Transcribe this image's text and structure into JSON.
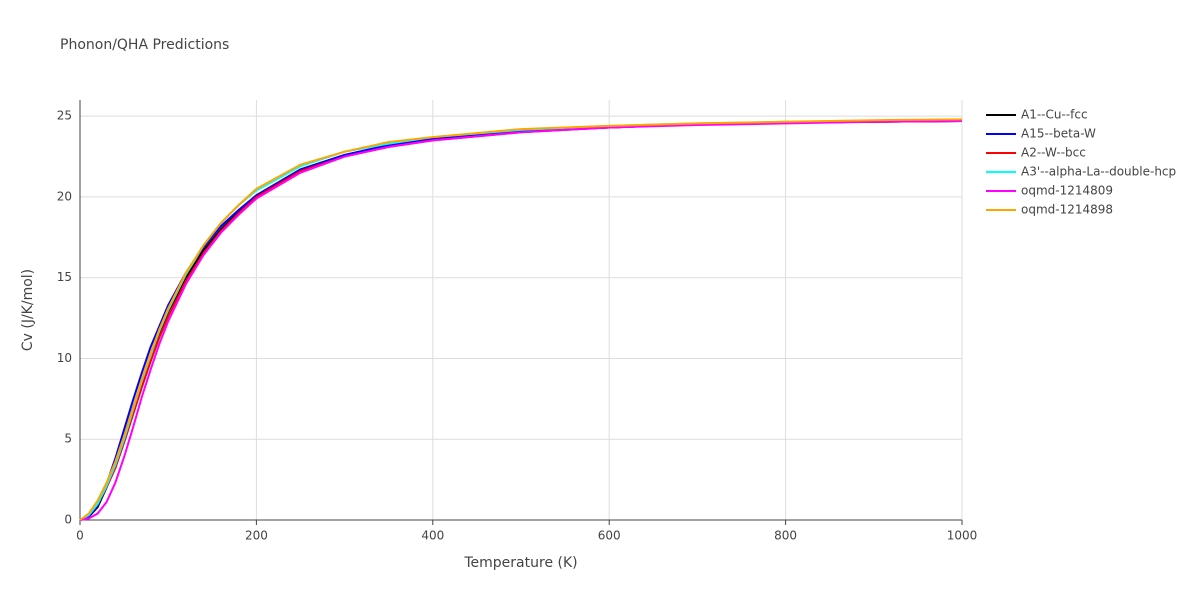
{
  "chart_data": {
    "type": "line",
    "title": "Phonon/QHA Predictions",
    "x_label": "Temperature (K)",
    "y_label": "Cv (J/K/mol)",
    "x": [
      0,
      10,
      20,
      30,
      40,
      50,
      60,
      70,
      80,
      90,
      100,
      120,
      140,
      160,
      180,
      200,
      250,
      300,
      350,
      400,
      500,
      600,
      700,
      800,
      900,
      1000
    ],
    "series": [
      {
        "name": "A1--Cu--fcc",
        "color": "#000000",
        "values": [
          0,
          0.2,
          0.8,
          2.0,
          3.5,
          5.2,
          6.9,
          8.6,
          10.2,
          11.6,
          12.9,
          15.0,
          16.7,
          18.0,
          19.1,
          20.1,
          21.7,
          22.6,
          23.2,
          23.6,
          24.1,
          24.3,
          24.5,
          24.6,
          24.65,
          24.7
        ]
      },
      {
        "name": "A15--beta-W",
        "color": "#0000ff",
        "values": [
          0,
          0.2,
          0.9,
          2.2,
          3.8,
          5.6,
          7.4,
          9.1,
          10.7,
          12.0,
          13.3,
          15.3,
          16.9,
          18.2,
          19.2,
          20.1,
          21.7,
          22.6,
          23.2,
          23.6,
          24.1,
          24.3,
          24.5,
          24.6,
          24.65,
          24.7
        ]
      },
      {
        "name": "A2--W--bcc",
        "color": "#ff0000",
        "values": [
          0,
          0.3,
          1.0,
          2.0,
          3.2,
          4.8,
          6.5,
          8.2,
          9.8,
          11.3,
          12.6,
          14.8,
          16.5,
          17.9,
          19.0,
          20.0,
          21.6,
          22.5,
          23.1,
          23.5,
          24.0,
          24.3,
          24.5,
          24.6,
          24.65,
          24.7
        ]
      },
      {
        "name": "A3'--alpha-La--double-hcp",
        "color": "#00ffff",
        "values": [
          0,
          0.3,
          1.0,
          2.1,
          3.4,
          5.0,
          6.8,
          8.6,
          10.2,
          11.7,
          13.0,
          15.2,
          17.0,
          18.4,
          19.5,
          20.4,
          21.9,
          22.8,
          23.3,
          23.7,
          24.15,
          24.4,
          24.55,
          24.65,
          24.7,
          24.75
        ]
      },
      {
        "name": "oqmd-1214809",
        "color": "#ff00ff",
        "values": [
          0,
          0.1,
          0.4,
          1.1,
          2.3,
          3.9,
          5.7,
          7.6,
          9.3,
          10.9,
          12.3,
          14.6,
          16.4,
          17.8,
          18.9,
          19.9,
          21.5,
          22.5,
          23.1,
          23.5,
          24.0,
          24.3,
          24.45,
          24.55,
          24.65,
          24.7
        ]
      },
      {
        "name": "oqmd-1214898",
        "color": "#ffa500",
        "values": [
          0,
          0.4,
          1.2,
          2.3,
          3.6,
          5.2,
          6.9,
          8.7,
          10.3,
          11.8,
          13.1,
          15.3,
          17.0,
          18.4,
          19.5,
          20.5,
          22.0,
          22.8,
          23.4,
          23.7,
          24.2,
          24.4,
          24.55,
          24.65,
          24.75,
          24.8
        ]
      }
    ],
    "xlim": [
      0,
      1000
    ],
    "xticks": [
      0,
      200,
      400,
      600,
      800,
      1000
    ],
    "ylim": [
      0,
      26
    ],
    "yticks": [
      0,
      5,
      10,
      15,
      20,
      25
    ],
    "grid": true,
    "legend": "top-right"
  }
}
